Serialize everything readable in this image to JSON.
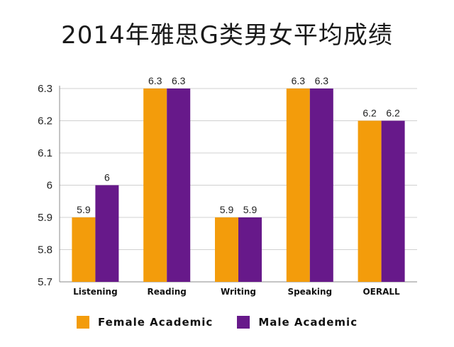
{
  "chart_data": {
    "type": "bar",
    "title": "2014年雅思G类男女平均成绩",
    "categories": [
      "Listening",
      "Reading",
      "Writing",
      "Speaking",
      "OERALL"
    ],
    "series": [
      {
        "name": "Female Academic",
        "color": "#F39C0B",
        "values": [
          5.9,
          6.3,
          5.9,
          6.3,
          6.2
        ],
        "labels": [
          "5.9",
          "6.3",
          "5.9",
          "6.3",
          "6.2"
        ]
      },
      {
        "name": "Male Academic",
        "color": "#67198A",
        "values": [
          6.0,
          6.3,
          5.9,
          6.3,
          6.2
        ],
        "labels": [
          "6",
          "6.3",
          "5.9",
          "6.3",
          "6.2"
        ]
      }
    ],
    "ylim": [
      5.7,
      6.3
    ],
    "yticks": [
      "5.7",
      "5.8",
      "5.9",
      "6",
      "6.1",
      "6.2",
      "6.3"
    ],
    "grid": true,
    "legend": "bottom"
  }
}
